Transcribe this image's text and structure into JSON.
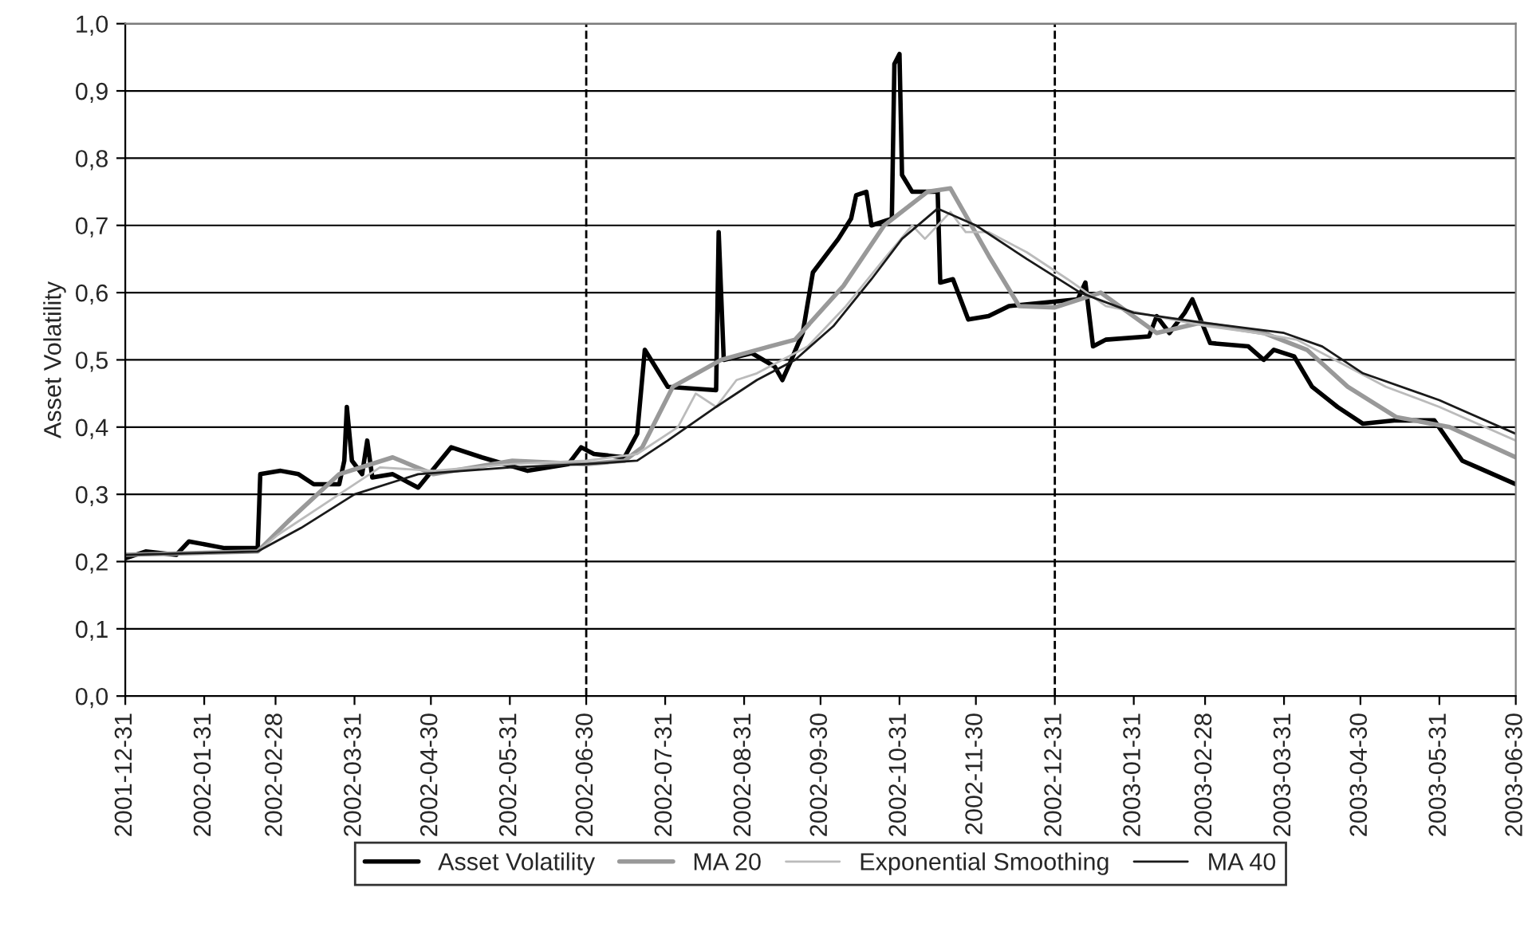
{
  "chart_data": {
    "type": "line",
    "ylabel": "Asset Volatility",
    "xlim": [
      "2001-12-31",
      "2003-06-30"
    ],
    "xticks": [
      "2001-12-31",
      "2002-01-31",
      "2002-02-28",
      "2002-03-31",
      "2002-04-30",
      "2002-05-31",
      "2002-06-30",
      "2002-07-31",
      "2002-08-31",
      "2002-09-30",
      "2002-10-31",
      "2002-11-30",
      "2002-12-31",
      "2003-01-31",
      "2003-02-28",
      "2003-03-31",
      "2003-04-30",
      "2003-05-31",
      "2003-06-30"
    ],
    "ylim": [
      0,
      1
    ],
    "yticks": [
      {
        "value": 0,
        "label": "0,0"
      },
      {
        "value": 0.1,
        "label": "0,1"
      },
      {
        "value": 0.2,
        "label": "0,2"
      },
      {
        "value": 0.3,
        "label": "0,3"
      },
      {
        "value": 0.4,
        "label": "0,4"
      },
      {
        "value": 0.5,
        "label": "0,5"
      },
      {
        "value": 0.6,
        "label": "0,6"
      },
      {
        "value": 0.7,
        "label": "0,7"
      },
      {
        "value": 0.8,
        "label": "0,8"
      },
      {
        "value": 0.9,
        "label": "0,9"
      },
      {
        "value": 1,
        "label": "1,0"
      }
    ],
    "grid": "y",
    "legend": "bottom",
    "line_style": "solid",
    "ref_lines": [
      {
        "axis": "x",
        "value": "2002-06-30",
        "color": "#000000",
        "line_style": "dashed"
      },
      {
        "axis": "x",
        "value": "2002-12-31",
        "color": "#000000",
        "line_style": "dashed"
      }
    ],
    "series": [
      {
        "name": "Asset Volatility",
        "color": "#000000",
        "x": [
          "2001-12-31",
          "2002-01-08",
          "2002-01-20",
          "2002-01-25",
          "2002-02-08",
          "2002-02-21",
          "2002-02-22",
          "2002-03-02",
          "2002-03-09",
          "2002-03-15",
          "2002-03-25",
          "2002-03-27",
          "2002-03-28",
          "2002-03-30",
          "2002-04-03",
          "2002-04-05",
          "2002-04-07",
          "2002-04-15",
          "2002-04-25",
          "2002-05-08",
          "2002-05-20",
          "2002-06-07",
          "2002-06-23",
          "2002-06-28",
          "2002-07-03",
          "2002-07-15",
          "2002-07-20",
          "2002-07-23",
          "2002-08-01",
          "2002-08-20",
          "2002-08-21",
          "2002-08-23",
          "2002-09-03",
          "2002-09-12",
          "2002-09-15",
          "2002-09-18",
          "2002-09-23",
          "2002-09-27",
          "2002-10-07",
          "2002-10-12",
          "2002-10-14",
          "2002-10-18",
          "2002-10-20",
          "2002-10-28",
          "2002-10-29",
          "2002-10-31",
          "2002-11-01",
          "2002-11-05",
          "2002-11-15",
          "2002-11-16",
          "2002-11-21",
          "2002-11-27",
          "2002-12-05",
          "2002-12-13",
          "2003-01-09",
          "2003-01-12",
          "2003-01-15",
          "2003-01-20",
          "2003-02-06",
          "2003-02-09",
          "2003-02-14",
          "2003-02-20",
          "2003-02-23",
          "2003-03-02",
          "2003-03-17",
          "2003-03-23",
          "2003-03-27",
          "2003-04-04",
          "2003-04-11",
          "2003-04-21",
          "2003-05-01",
          "2003-05-14",
          "2003-05-29",
          "2003-06-09",
          "2003-06-15",
          "2003-06-30"
        ],
        "values": [
          0.205,
          0.215,
          0.21,
          0.23,
          0.22,
          0.22,
          0.33,
          0.335,
          0.33,
          0.315,
          0.315,
          0.35,
          0.43,
          0.35,
          0.33,
          0.38,
          0.325,
          0.33,
          0.31,
          0.37,
          0.355,
          0.335,
          0.345,
          0.37,
          0.36,
          0.355,
          0.39,
          0.515,
          0.46,
          0.455,
          0.69,
          0.5,
          0.51,
          0.49,
          0.47,
          0.495,
          0.54,
          0.63,
          0.68,
          0.71,
          0.745,
          0.75,
          0.7,
          0.71,
          0.94,
          0.955,
          0.775,
          0.75,
          0.75,
          0.615,
          0.62,
          0.56,
          0.565,
          0.58,
          0.59,
          0.615,
          0.52,
          0.53,
          0.535,
          0.565,
          0.54,
          0.57,
          0.59,
          0.525,
          0.52,
          0.5,
          0.515,
          0.505,
          0.46,
          0.43,
          0.405,
          0.41,
          0.41,
          0.35,
          0.34,
          0.315
        ]
      },
      {
        "name": "MA 20",
        "color": "#999999",
        "x": [
          "2001-12-31",
          "2002-02-21",
          "2002-03-05",
          "2002-03-25",
          "2002-04-15",
          "2002-05-01",
          "2002-06-01",
          "2002-06-30",
          "2002-07-15",
          "2002-07-22",
          "2002-08-03",
          "2002-08-22",
          "2002-09-10",
          "2002-09-20",
          "2002-10-09",
          "2002-10-25",
          "2002-11-11",
          "2002-11-20",
          "2002-12-05",
          "2002-12-17",
          "2002-12-31",
          "2003-01-18",
          "2003-02-09",
          "2003-02-26",
          "2003-03-23",
          "2003-04-09",
          "2003-04-25",
          "2003-05-14",
          "2003-06-04",
          "2003-06-30"
        ],
        "values": [
          0.21,
          0.215,
          0.26,
          0.33,
          0.355,
          0.33,
          0.35,
          0.345,
          0.35,
          0.37,
          0.46,
          0.5,
          0.52,
          0.53,
          0.61,
          0.7,
          0.75,
          0.755,
          0.655,
          0.58,
          0.578,
          0.6,
          0.54,
          0.555,
          0.54,
          0.515,
          0.46,
          0.415,
          0.4,
          0.355
        ]
      },
      {
        "name": "Exponential Smoothing",
        "color": "#bbbbbb",
        "x": [
          "2001-12-31",
          "2002-02-21",
          "2002-03-01",
          "2002-03-25",
          "2002-04-10",
          "2002-05-01",
          "2002-06-01",
          "2002-06-30",
          "2002-07-20",
          "2002-08-05",
          "2002-08-12",
          "2002-08-20",
          "2002-08-28",
          "2002-09-05",
          "2002-09-25",
          "2002-10-10",
          "2002-10-25",
          "2002-11-05",
          "2002-11-10",
          "2002-11-20",
          "2002-11-26",
          "2002-12-05",
          "2002-12-20",
          "2003-01-05",
          "2003-01-20",
          "2003-02-15",
          "2003-03-01",
          "2003-03-20",
          "2003-04-05",
          "2003-04-20",
          "2003-05-10",
          "2003-05-31",
          "2003-06-30"
        ],
        "values": [
          0.21,
          0.215,
          0.24,
          0.3,
          0.34,
          0.335,
          0.345,
          0.35,
          0.36,
          0.4,
          0.45,
          0.43,
          0.47,
          0.48,
          0.52,
          0.58,
          0.65,
          0.7,
          0.68,
          0.72,
          0.69,
          0.69,
          0.66,
          0.62,
          0.58,
          0.56,
          0.55,
          0.54,
          0.53,
          0.5,
          0.46,
          0.43,
          0.38
        ]
      },
      {
        "name": "MA 40",
        "color": "#1a1a1a",
        "x": [
          "2001-12-31",
          "2002-02-21",
          "2002-03-10",
          "2002-03-31",
          "2002-04-25",
          "2002-05-31",
          "2002-06-30",
          "2002-07-20",
          "2002-08-01",
          "2002-08-20",
          "2002-09-05",
          "2002-09-20",
          "2002-10-05",
          "2002-10-20",
          "2002-11-01",
          "2002-11-15",
          "2002-11-30",
          "2002-12-20",
          "2003-01-10",
          "2003-01-31",
          "2003-02-28",
          "2003-03-31",
          "2003-04-15",
          "2003-05-01",
          "2003-05-31",
          "2003-06-30"
        ],
        "values": [
          0.21,
          0.215,
          0.25,
          0.3,
          0.33,
          0.34,
          0.345,
          0.35,
          0.38,
          0.43,
          0.47,
          0.5,
          0.55,
          0.62,
          0.68,
          0.725,
          0.7,
          0.65,
          0.6,
          0.57,
          0.555,
          0.54,
          0.52,
          0.48,
          0.44,
          0.39
        ]
      }
    ]
  }
}
